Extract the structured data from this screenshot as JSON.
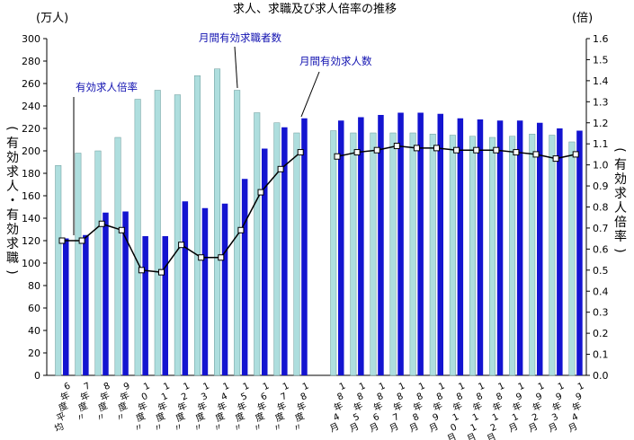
{
  "chart_data": {
    "type": "bar",
    "title": "求人、求職及び求人倍率の推移",
    "left_axis": {
      "unit_label": "(万人)",
      "title": "(有効求人・有効求職)",
      "ylim": [
        0,
        300
      ],
      "ticks": [
        "0",
        "20",
        "40",
        "60",
        "80",
        "100",
        "120",
        "140",
        "160",
        "180",
        "200",
        "220",
        "240",
        "260",
        "280",
        "300"
      ]
    },
    "right_axis": {
      "unit_label": "(倍)",
      "title": "(有効求人倍率)",
      "ylim": [
        0,
        1.6
      ],
      "ticks": [
        "0.0",
        "0.1",
        "0.2",
        "0.3",
        "0.4",
        "0.5",
        "0.6",
        "0.7",
        "0.8",
        "0.9",
        "1.0",
        "1.1",
        "1.2",
        "1.3",
        "1.4",
        "1.5",
        "1.6"
      ]
    },
    "categories": [
      "6年度平均",
      "7年度〃",
      "8年度〃",
      "9年度〃",
      "10年度〃",
      "11年度〃",
      "12年度〃",
      "13年度〃",
      "14年度〃",
      "15年度〃",
      "16年度〃",
      "17年度〃",
      "18年度〃",
      "18年4月",
      "18年5月",
      "18年6月",
      "18年7月",
      "18年8月",
      "18年9月",
      "18年10月",
      "18年11月",
      "18年12月",
      "19年1月",
      "19年2月",
      "19年3月",
      "19年4月"
    ],
    "series": [
      {
        "name": "月間有効求職者数",
        "type": "bar",
        "axis": "left",
        "color": "#aedede",
        "values": [
          187,
          198,
          200,
          212,
          246,
          254,
          250,
          267,
          273,
          254,
          234,
          225,
          216,
          218,
          216,
          216,
          216,
          216,
          215,
          214,
          213,
          212,
          213,
          215,
          214,
          208
        ]
      },
      {
        "name": "月間有効求人数",
        "type": "bar",
        "axis": "left",
        "color": "#1414d0",
        "values": [
          122,
          125,
          145,
          146,
          124,
          124,
          155,
          149,
          153,
          175,
          202,
          221,
          229,
          227,
          230,
          232,
          234,
          234,
          233,
          229,
          228,
          227,
          227,
          225,
          220,
          218
        ]
      },
      {
        "name": "有効求人倍率",
        "type": "line",
        "axis": "right",
        "color": "#000000",
        "values": [
          0.64,
          0.64,
          0.72,
          0.69,
          0.5,
          0.49,
          0.62,
          0.56,
          0.56,
          0.69,
          0.87,
          0.98,
          1.06,
          1.04,
          1.06,
          1.07,
          1.09,
          1.08,
          1.08,
          1.07,
          1.07,
          1.07,
          1.06,
          1.05,
          1.03,
          1.05
        ]
      }
    ],
    "annotations": [
      "月間有効求職者数",
      "有効求人倍率",
      "月間有効求人数"
    ],
    "grid": false
  }
}
